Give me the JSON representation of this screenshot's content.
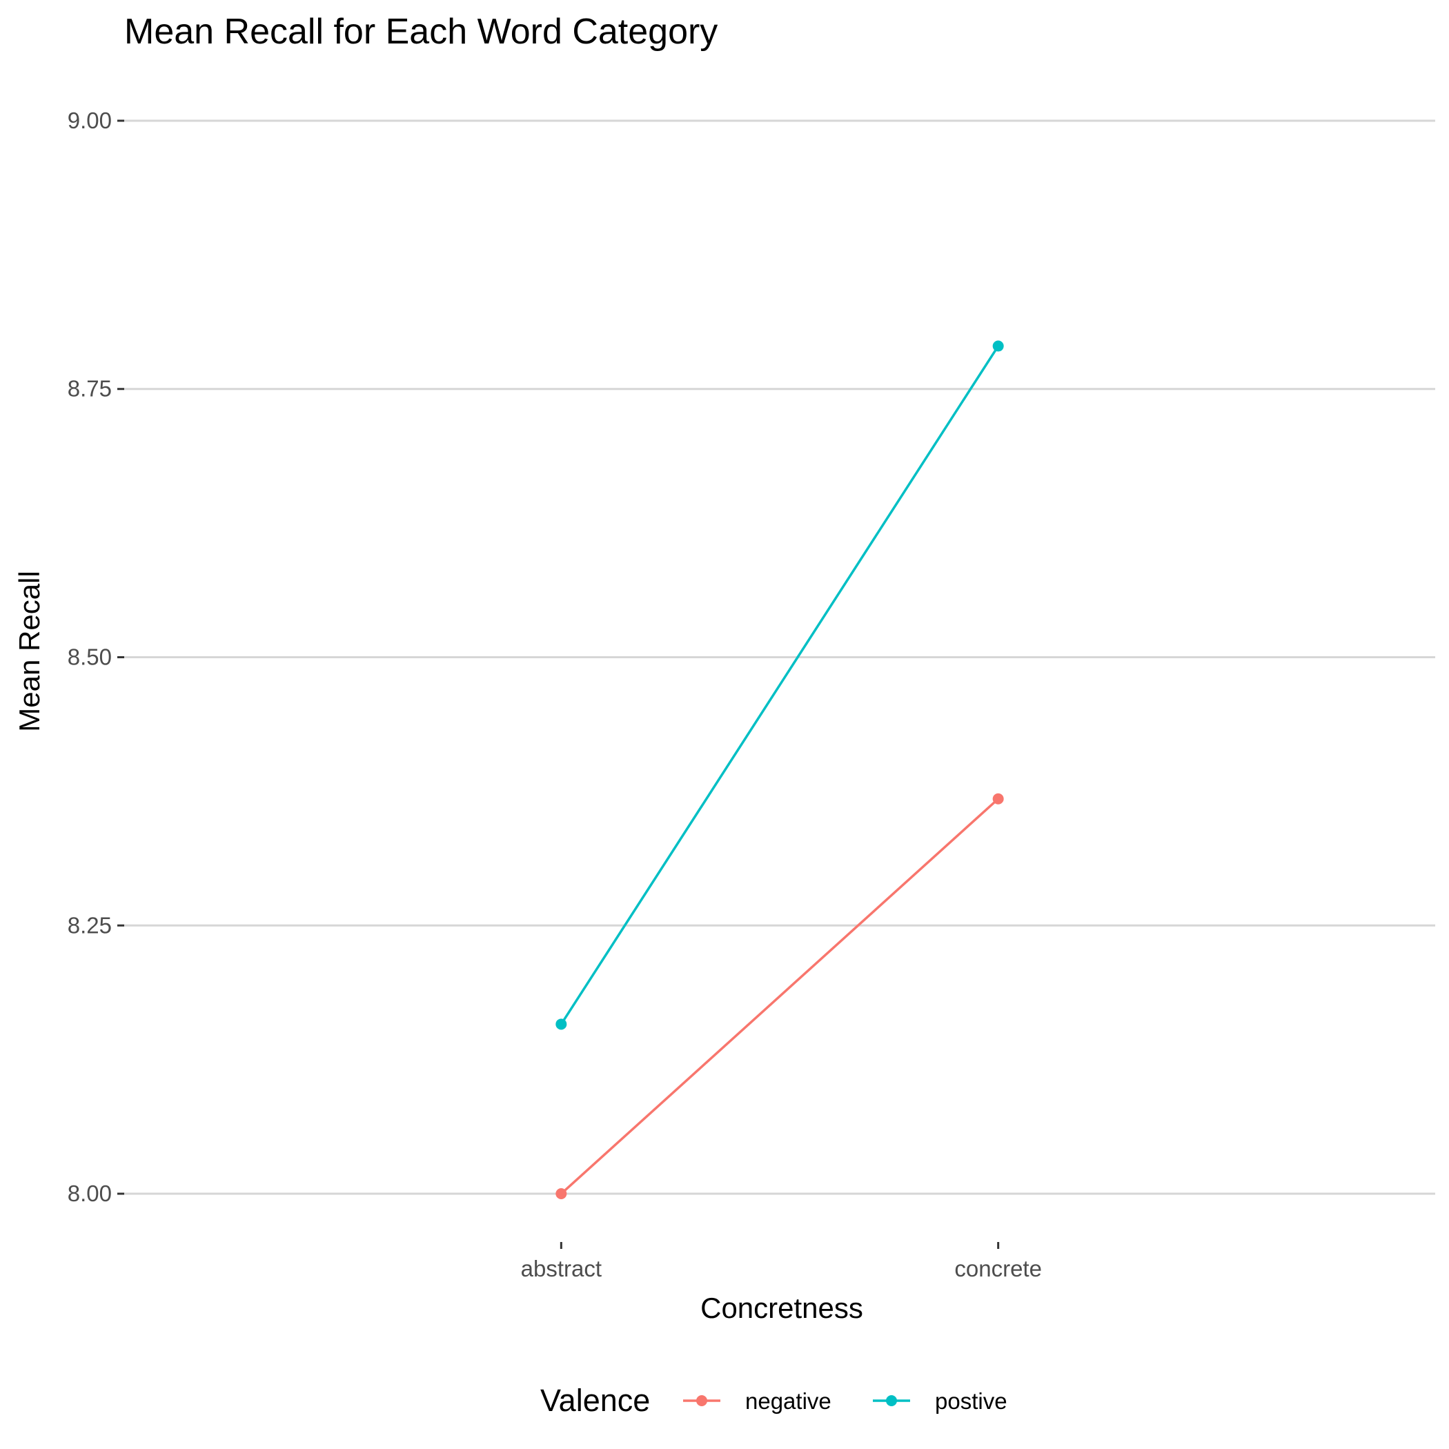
{
  "chart_data": {
    "type": "line",
    "title": "Mean Recall for Each Word Category",
    "xlabel": "Concretness",
    "ylabel": "Mean Recall",
    "categories": [
      "abstract",
      "concrete"
    ],
    "ylim": [
      7.955,
      9.045
    ],
    "yticks": [
      "8.00",
      "8.25",
      "8.50",
      "8.75",
      "9.00"
    ],
    "grid": true,
    "legend": {
      "title": "Valence",
      "placement": "bottom"
    },
    "series": [
      {
        "name": "negative",
        "color": "#F8766D",
        "values": [
          8.0,
          8.368
        ]
      },
      {
        "name": "postive",
        "color": "#00BFC4",
        "values": [
          8.158,
          8.79
        ]
      }
    ]
  }
}
